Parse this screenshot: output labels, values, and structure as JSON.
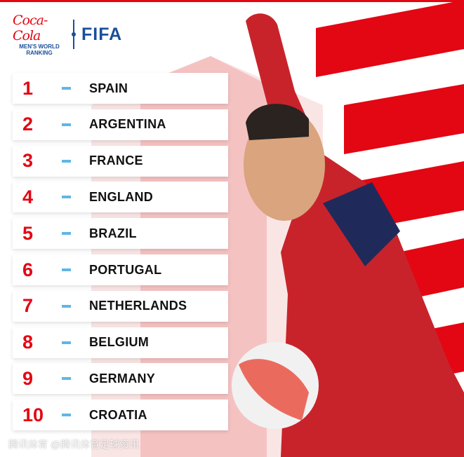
{
  "brand": {
    "sponsor": "Coca-Cola",
    "subtitle_line1": "MEN'S WORLD",
    "subtitle_line2": "RANKING",
    "org": "FIFA"
  },
  "colors": {
    "accent_red": "#e30613",
    "fifa_blue": "#1a4f9a",
    "dash_blue": "#5fb7e4"
  },
  "rankings": [
    {
      "rank": "1",
      "team": "SPAIN"
    },
    {
      "rank": "2",
      "team": "ARGENTINA"
    },
    {
      "rank": "3",
      "team": "FRANCE"
    },
    {
      "rank": "4",
      "team": "ENGLAND"
    },
    {
      "rank": "5",
      "team": "BRAZIL"
    },
    {
      "rank": "6",
      "team": "PORTUGAL"
    },
    {
      "rank": "7",
      "team": "NETHERLANDS"
    },
    {
      "rank": "8",
      "team": "BELGIUM"
    },
    {
      "rank": "9",
      "team": "GERMANY"
    },
    {
      "rank": "10",
      "team": "CROATIA"
    }
  ],
  "watermark": "腾讯体育 @腾讯体育足球资讯"
}
